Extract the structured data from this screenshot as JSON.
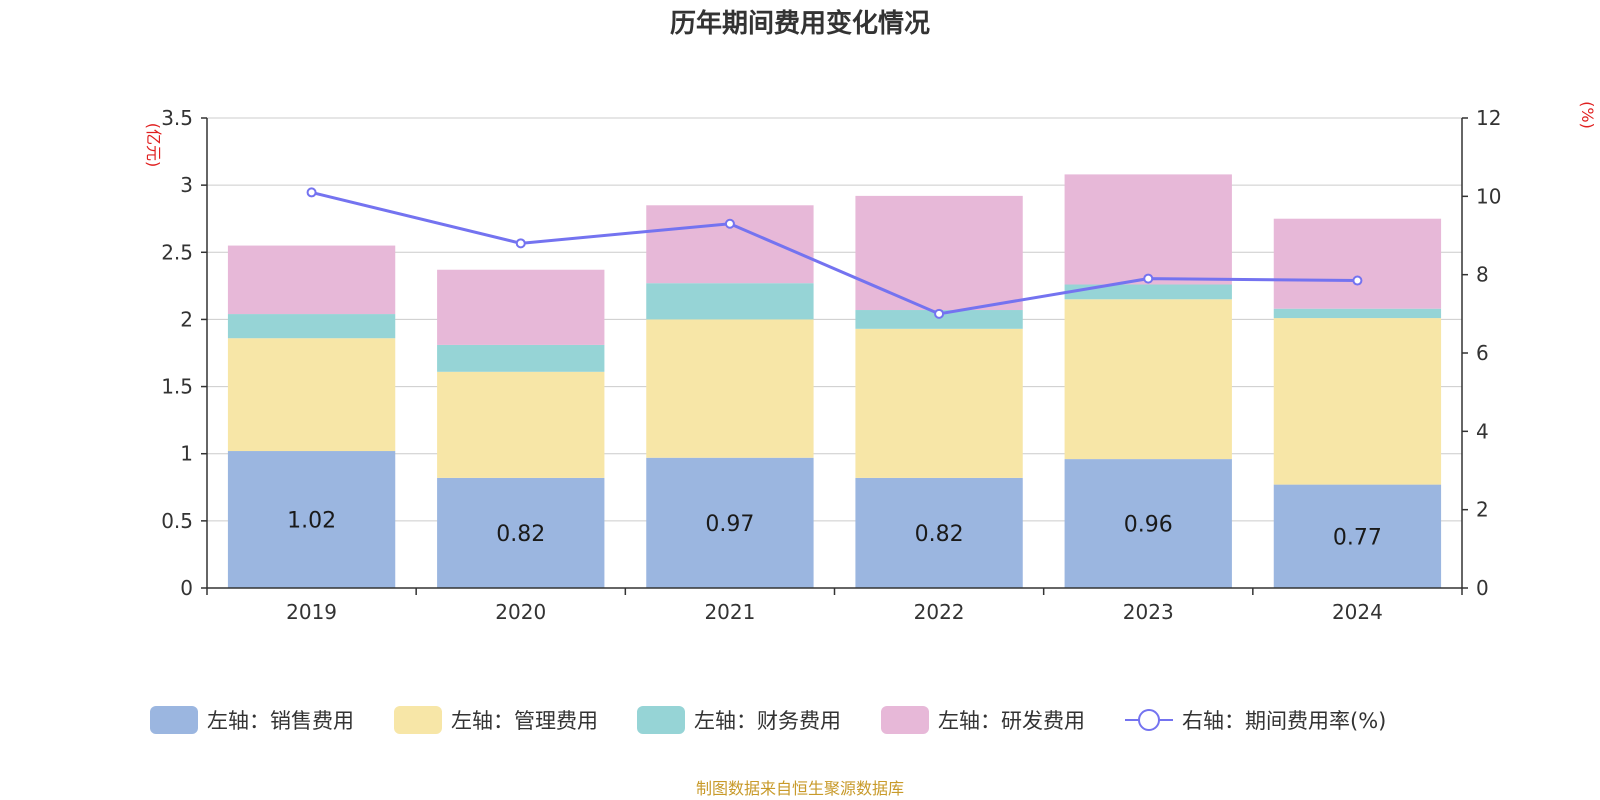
{
  "chart_data": {
    "type": "bar",
    "stacked": true,
    "title": "历年期间费用变化情况",
    "categories": [
      "2019",
      "2020",
      "2021",
      "2022",
      "2023",
      "2024"
    ],
    "left_axis": {
      "unit": "(亿元)",
      "ylim": [
        0,
        3.5
      ],
      "ticks": [
        "0",
        "0.5",
        "1",
        "1.5",
        "2",
        "2.5",
        "3",
        "3.5"
      ]
    },
    "right_axis": {
      "unit": "(%)",
      "ylim": [
        0,
        12
      ],
      "ticks": [
        "0",
        "2",
        "4",
        "6",
        "8",
        "10",
        "12"
      ]
    },
    "series": [
      {
        "name": "左轴：销售费用",
        "axis": "left",
        "color": "#9bb6e0",
        "values": [
          1.02,
          0.82,
          0.97,
          0.82,
          0.96,
          0.77
        ],
        "labels": [
          "1.02",
          "0.82",
          "0.97",
          "0.82",
          "0.96",
          "0.77"
        ]
      },
      {
        "name": "左轴：管理费用",
        "axis": "left",
        "color": "#f7e6a7",
        "values": [
          0.84,
          0.79,
          1.03,
          1.11,
          1.19,
          1.24
        ]
      },
      {
        "name": "左轴：财务费用",
        "axis": "left",
        "color": "#96d4d6",
        "values": [
          0.18,
          0.2,
          0.27,
          0.14,
          0.11,
          0.07
        ]
      },
      {
        "name": "左轴：研发费用",
        "axis": "left",
        "color": "#e7b8d8",
        "values": [
          0.51,
          0.56,
          0.58,
          0.85,
          0.82,
          0.67
        ]
      },
      {
        "name": "右轴：期间费用率(%)",
        "axis": "right",
        "type": "line",
        "color": "#7473f0",
        "values": [
          10.1,
          8.8,
          9.3,
          7.0,
          7.9,
          7.85
        ]
      }
    ],
    "grid": true,
    "legend": "bottom"
  },
  "footer": {
    "source": "制图数据来自恒生聚源数据库"
  }
}
